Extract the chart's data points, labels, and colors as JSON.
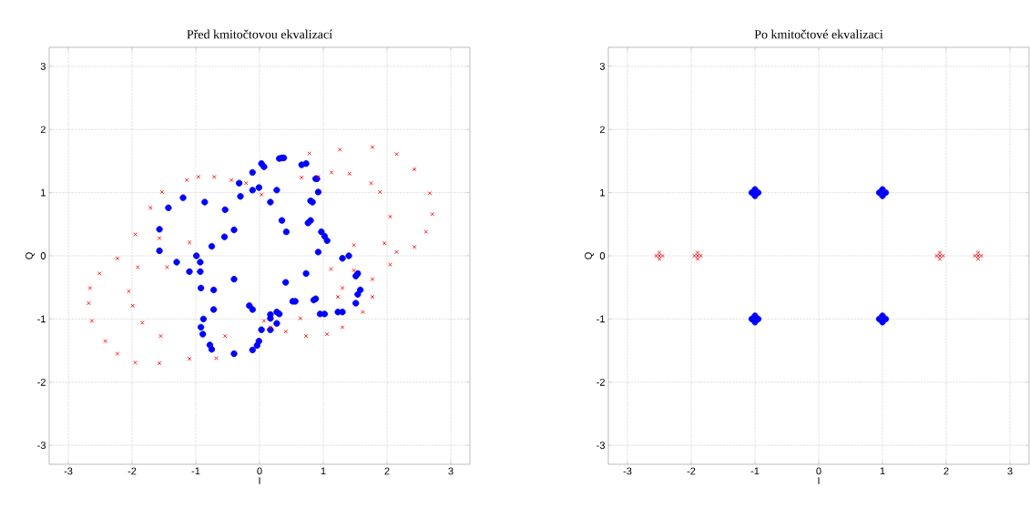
{
  "chart_data": [
    {
      "type": "scatter",
      "title": "Před kmitočtovou ekvalizací",
      "xlabel": "I",
      "ylabel": "Q",
      "xlim": [
        -3.3,
        3.3
      ],
      "ylim": [
        -3.3,
        3.3
      ],
      "xticks": [
        -3,
        -2,
        -1,
        0,
        1,
        2,
        3
      ],
      "yticks": [
        -3,
        -2,
        -1,
        0,
        1,
        2,
        3
      ],
      "grid": true,
      "series": [
        {
          "color": "#0000ff",
          "marker": "circle",
          "x": [
            -0.32,
            -0.11,
            0.03,
            0.35,
            0.38,
            0.66,
            0.73,
            0.88,
            0.9,
            0.92,
            0.83,
            0.8,
            0.76,
            0.8,
            1.02,
            1.06,
            1.3,
            1.4,
            1.51,
            1.54,
            1.58,
            1.54,
            1.51,
            1.3,
            1.23,
            1.02,
            0.95,
            0.85,
            0.88,
            0.52,
            0.56,
            0.31,
            0.27,
            0.17,
            0.03,
            -0.04,
            -0.11,
            -0.4,
            -0.75,
            -0.78,
            -0.89,
            -0.92,
            -0.88,
            -0.72,
            -0.72,
            -0.92,
            -0.93,
            -0.99,
            -1.57,
            -1.43,
            -1.2,
            -0.86,
            -0.54,
            -0.3,
            -0.01,
            0.27,
            -0.11,
            0.17,
            0.35,
            0.42,
            -1.57,
            -1.3,
            -1.1,
            -0.4,
            -0.55,
            -0.75,
            -0.93,
            0.97,
            0.92,
            0.73,
            0.41,
            -0.4,
            -0.16,
            0.17,
            -0.11,
            0.17,
            0.07,
            0.31,
            -0.01,
            0.27
          ],
          "values": [
            1.15,
            1.32,
            1.46,
            1.55,
            1.55,
            1.44,
            1.46,
            1.22,
            1.22,
            1.01,
            0.85,
            0.87,
            0.52,
            0.56,
            0.31,
            0.24,
            -0.04,
            0.0,
            -0.32,
            -0.28,
            -0.54,
            -0.61,
            -0.75,
            -0.89,
            -0.89,
            -0.92,
            -0.92,
            -0.7,
            -0.68,
            -0.72,
            -0.72,
            -0.92,
            -0.89,
            -1.17,
            -1.17,
            -1.42,
            -1.49,
            -1.55,
            -1.48,
            -1.41,
            -1.24,
            -1.13,
            -1.0,
            -0.85,
            -0.54,
            -0.51,
            -0.25,
            0.0,
            0.42,
            0.76,
            0.92,
            0.85,
            0.73,
            0.94,
            1.08,
            1.04,
            1.04,
            0.85,
            0.56,
            0.38,
            0.08,
            -0.1,
            -0.25,
            0.41,
            0.3,
            0.15,
            -0.1,
            0.38,
            0.06,
            -0.28,
            -0.42,
            -0.37,
            -0.79,
            -0.99,
            -0.85,
            -0.93,
            1.41,
            1.54,
            -1.35,
            -1.07
          ]
        },
        {
          "color": "#ff0000",
          "marker": "cross",
          "x": [
            -1.53,
            -1.71,
            -1.95,
            -2.23,
            -2.51,
            -2.66,
            -2.68,
            -2.63,
            -2.42,
            -2.23,
            -1.95,
            -1.57,
            -1.1,
            -0.68,
            -1.14,
            -0.96,
            -0.71,
            -0.44,
            -0.21,
            0.03,
            -1.57,
            -1.91,
            -1.1,
            -1.45,
            -2.05,
            -1.99,
            -1.84,
            -1.55,
            -0.54,
            0.07,
            0.78,
            1.26,
            1.77,
            2.15,
            2.43,
            2.67,
            2.71,
            2.61,
            2.43,
            2.15,
            1.96,
            2.05,
            1.77,
            1.77,
            1.62,
            1.3,
            1.06,
            0.73,
            0.41,
            0.17,
            0.66,
            0.92,
            1.13,
            1.41,
            1.75,
            1.89,
            2.05,
            1.48,
            1.12,
            1.48,
            1.3,
            1.23,
            0.64
          ],
          "values": [
            1.01,
            0.76,
            0.34,
            -0.04,
            -0.28,
            -0.51,
            -0.75,
            -1.03,
            -1.35,
            -1.55,
            -1.69,
            -1.7,
            -1.63,
            -1.62,
            1.2,
            1.25,
            1.25,
            1.2,
            1.15,
            0.97,
            0.28,
            -0.18,
            0.21,
            -0.18,
            -0.56,
            -0.79,
            -1.06,
            -1.27,
            -1.27,
            -1.03,
            1.62,
            1.68,
            1.72,
            1.61,
            1.37,
            0.99,
            0.66,
            0.38,
            0.14,
            0.06,
            0.2,
            -0.14,
            -0.37,
            -0.65,
            -0.89,
            -1.13,
            -1.24,
            -1.27,
            -1.2,
            -1.13,
            1.24,
            1.25,
            1.32,
            1.3,
            1.15,
            1.01,
            0.62,
            0.17,
            -0.21,
            -0.23,
            -0.51,
            -0.65,
            -0.99
          ]
        }
      ]
    },
    {
      "type": "scatter",
      "title": "Po kmitočtové ekvalizaci",
      "xlabel": "I",
      "ylabel": "Q",
      "xlim": [
        -3.3,
        3.3
      ],
      "ylim": [
        -3.3,
        3.3
      ],
      "xticks": [
        -3,
        -2,
        -1,
        0,
        1,
        2,
        3
      ],
      "yticks": [
        -3,
        -2,
        -1,
        0,
        1,
        2,
        3
      ],
      "grid": true,
      "series": [
        {
          "color": "#0000ff",
          "marker": "circle",
          "x": [
            -1.05,
            -0.95,
            -1.0,
            -1.0,
            0.95,
            1.05,
            1.0,
            1.0,
            -1.05,
            -0.95,
            -1.0,
            -1.0,
            0.95,
            1.05,
            1.0,
            1.0
          ],
          "values": [
            1.0,
            1.0,
            1.05,
            0.95,
            1.0,
            1.0,
            1.05,
            0.95,
            -1.0,
            -1.0,
            -0.95,
            -1.05,
            -1.0,
            -1.0,
            -0.95,
            -1.05
          ]
        },
        {
          "color": "#ff0000",
          "marker": "cross",
          "x": [
            -2.5,
            -2.55,
            -2.45,
            -2.5,
            -2.5,
            -1.9,
            -1.95,
            -1.85,
            -1.9,
            -1.9,
            1.9,
            1.85,
            1.95,
            1.9,
            1.9,
            2.5,
            2.45,
            2.55,
            2.5,
            2.5
          ],
          "values": [
            0.0,
            0.0,
            0.0,
            0.05,
            -0.05,
            0.0,
            0.0,
            0.0,
            0.05,
            -0.05,
            0.0,
            0.0,
            0.0,
            0.05,
            -0.05,
            0.0,
            0.0,
            0.0,
            0.05,
            -0.05
          ]
        }
      ]
    }
  ]
}
